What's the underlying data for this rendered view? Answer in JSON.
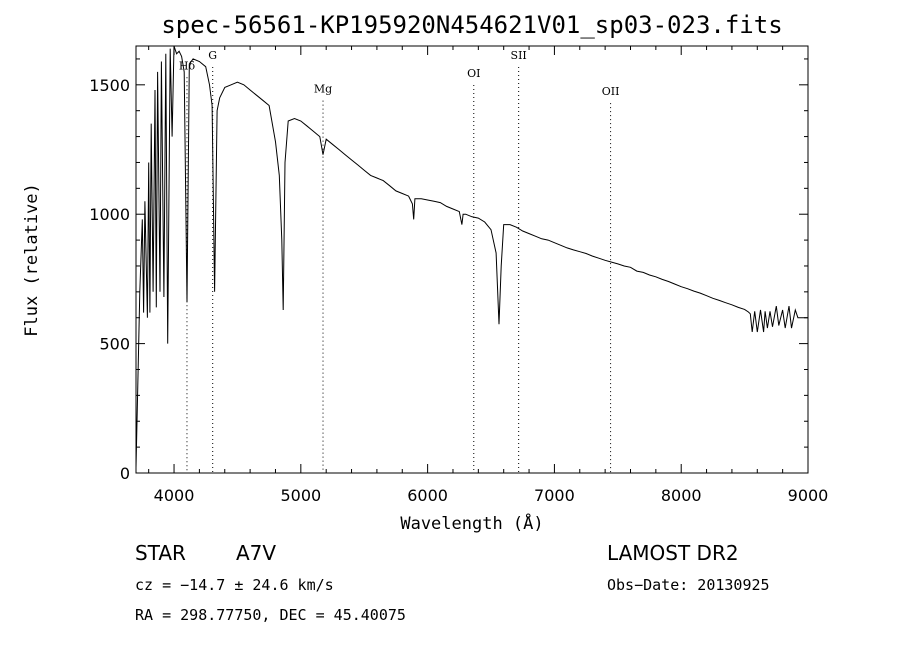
{
  "chart_data": {
    "type": "line",
    "title": "spec-56561-KP195920N454621V01_sp03-023.fits",
    "xlabel": "Wavelength (Å)",
    "ylabel": "Flux (relative)",
    "xlim": [
      3700,
      9000
    ],
    "ylim": [
      0,
      1650
    ],
    "x_ticks": [
      4000,
      5000,
      6000,
      7000,
      8000,
      9000
    ],
    "y_ticks": [
      0,
      500,
      1000,
      1500
    ],
    "grid": false,
    "line_color": "#000000",
    "marker_color": "#000000",
    "lines": [
      {
        "label": "Hδ",
        "wavelength": 4102,
        "flux_label": 1560
      },
      {
        "label": "G",
        "wavelength": 4305,
        "flux_label": 1600
      },
      {
        "label": "Mg",
        "wavelength": 5175,
        "flux_label": 1470
      },
      {
        "label": "OI",
        "wavelength": 6364,
        "flux_label": 1530
      },
      {
        "label": "SII",
        "wavelength": 6718,
        "flux_label": 1600
      },
      {
        "label": "OII",
        "wavelength": 7443,
        "flux_label": 1460
      }
    ],
    "series": [
      {
        "x": [
          3700,
          3710,
          3730,
          3750,
          3760,
          3770,
          3790,
          3800,
          3810,
          3820,
          3835,
          3850,
          3860,
          3870,
          3889,
          3900,
          3920,
          3935,
          3950,
          3970,
          3985,
          4000,
          4020,
          4040,
          4060,
          4080,
          4102,
          4120,
          4150,
          4200,
          4250,
          4280,
          4300,
          4320,
          4340,
          4360,
          4400,
          4450,
          4500,
          4550,
          4600,
          4650,
          4700,
          4750,
          4800,
          4830,
          4850,
          4861,
          4875,
          4900,
          4950,
          5000,
          5050,
          5100,
          5150,
          5175,
          5200,
          5250,
          5300,
          5350,
          5400,
          5450,
          5500,
          5550,
          5600,
          5650,
          5700,
          5750,
          5800,
          5850,
          5880,
          5890,
          5900,
          5950,
          6000,
          6050,
          6100,
          6150,
          6200,
          6250,
          6270,
          6280,
          6300,
          6350,
          6400,
          6450,
          6500,
          6540,
          6563,
          6580,
          6600,
          6650,
          6700,
          6750,
          6800,
          6850,
          6900,
          6950,
          7000,
          7050,
          7100,
          7150,
          7200,
          7250,
          7300,
          7350,
          7400,
          7450,
          7500,
          7550,
          7600,
          7650,
          7700,
          7750,
          7800,
          7850,
          7900,
          7950,
          8000,
          8050,
          8100,
          8150,
          8200,
          8250,
          8300,
          8350,
          8400,
          8450,
          8500,
          8530,
          8545,
          8560,
          8580,
          8600,
          8625,
          8650,
          8662,
          8680,
          8700,
          8720,
          8750,
          8770,
          8800,
          8820,
          8850,
          8870,
          8900,
          8920,
          8950,
          8980,
          9000
        ],
        "y": [
          20,
          250,
          700,
          980,
          620,
          1050,
          600,
          1200,
          620,
          1350,
          700,
          1480,
          640,
          1550,
          700,
          1590,
          680,
          1620,
          500,
          1640,
          1300,
          1650,
          1620,
          1630,
          1610,
          1550,
          660,
          1580,
          1600,
          1590,
          1570,
          1500,
          1420,
          700,
          1400,
          1450,
          1490,
          1500,
          1510,
          1500,
          1480,
          1460,
          1440,
          1420,
          1280,
          1150,
          900,
          630,
          1200,
          1360,
          1370,
          1360,
          1340,
          1320,
          1300,
          1230,
          1290,
          1270,
          1250,
          1230,
          1210,
          1190,
          1170,
          1150,
          1140,
          1130,
          1110,
          1090,
          1080,
          1070,
          1040,
          980,
          1060,
          1060,
          1055,
          1050,
          1045,
          1030,
          1020,
          1010,
          960,
          1000,
          1000,
          990,
          985,
          970,
          940,
          850,
          575,
          800,
          960,
          960,
          950,
          935,
          925,
          915,
          905,
          900,
          890,
          880,
          870,
          862,
          855,
          848,
          838,
          830,
          822,
          815,
          808,
          800,
          795,
          780,
          775,
          765,
          758,
          748,
          740,
          730,
          720,
          712,
          703,
          695,
          685,
          675,
          667,
          658,
          650,
          640,
          632,
          622,
          615,
          545,
          625,
          545,
          630,
          545,
          625,
          560,
          625,
          565,
          645,
          570,
          630,
          560,
          645,
          560,
          630,
          600,
          600,
          600,
          600
        ]
      }
    ]
  },
  "footer": {
    "object_class": "STAR",
    "subclass": "A7V",
    "survey": "LAMOST DR2",
    "cz": "cz = −14.7 ± 24.6 km/s",
    "obs_date": "Obs−Date: 20130925",
    "coords": "RA = 298.77750, DEC =  45.40075"
  }
}
